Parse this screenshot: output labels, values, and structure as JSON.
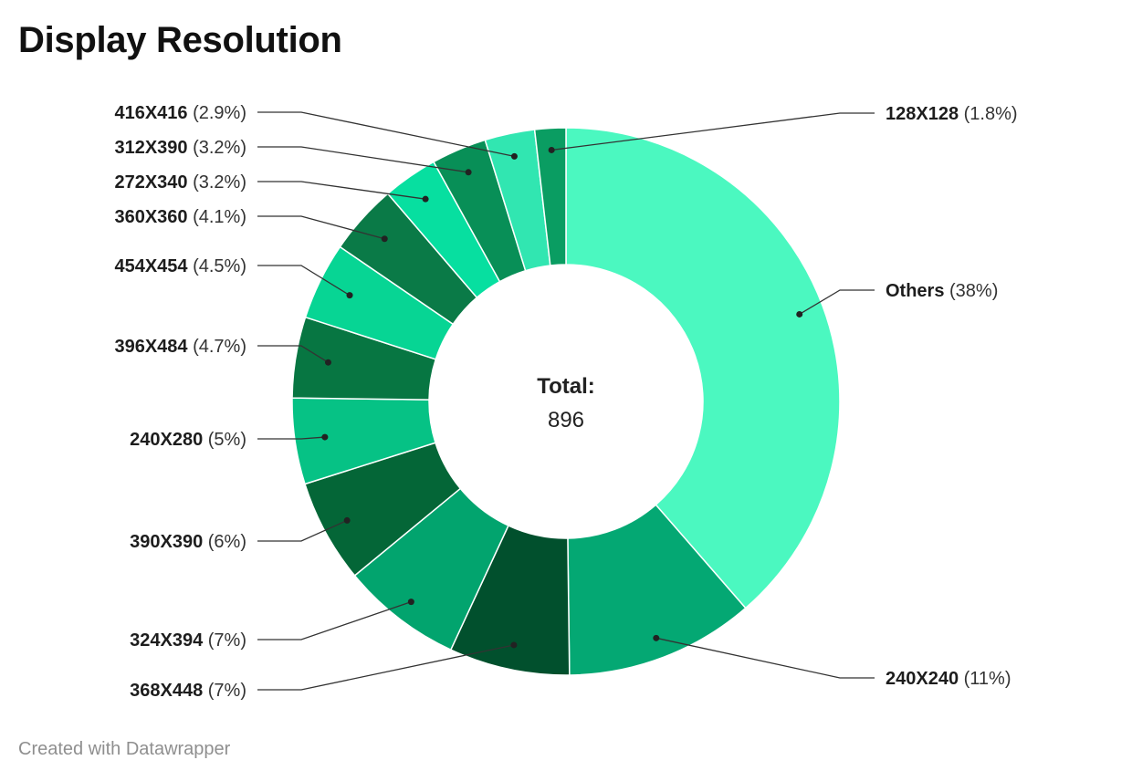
{
  "title": "Display Resolution",
  "footer": "Created with Datawrapper",
  "chart_data": {
    "type": "pie",
    "variant": "donut",
    "title": "Display Resolution",
    "center_label": "Total:",
    "center_value": "896",
    "slices": [
      {
        "label": "Others",
        "display": "(38%)",
        "value": 38,
        "color": "#4bf8c0"
      },
      {
        "label": "240X240",
        "display": "(11%)",
        "value": 11,
        "color": "#04a873"
      },
      {
        "label": "368X448",
        "display": "(7%)",
        "value": 7,
        "color": "#01502d"
      },
      {
        "label": "324X394",
        "display": "(7%)",
        "value": 7,
        "color": "#02a46e"
      },
      {
        "label": "390X390",
        "display": "(6%)",
        "value": 6,
        "color": "#046637"
      },
      {
        "label": "240X280",
        "display": "(5%)",
        "value": 5,
        "color": "#06c285"
      },
      {
        "label": "396X484",
        "display": "(4.7%)",
        "value": 4.7,
        "color": "#077642"
      },
      {
        "label": "454X454",
        "display": "(4.5%)",
        "value": 4.5,
        "color": "#07d594"
      },
      {
        "label": "360X360",
        "display": "(4.1%)",
        "value": 4.1,
        "color": "#0a7a47"
      },
      {
        "label": "272X340",
        "display": "(3.2%)",
        "value": 3.2,
        "color": "#07dfa0"
      },
      {
        "label": "312X390",
        "display": "(3.2%)",
        "value": 3.2,
        "color": "#088f57"
      },
      {
        "label": "416X416",
        "display": "(2.9%)",
        "value": 2.9,
        "color": "#31e6b1"
      },
      {
        "label": "128X128",
        "display": "(1.8%)",
        "value": 1.8,
        "color": "#0a9d62"
      }
    ]
  }
}
